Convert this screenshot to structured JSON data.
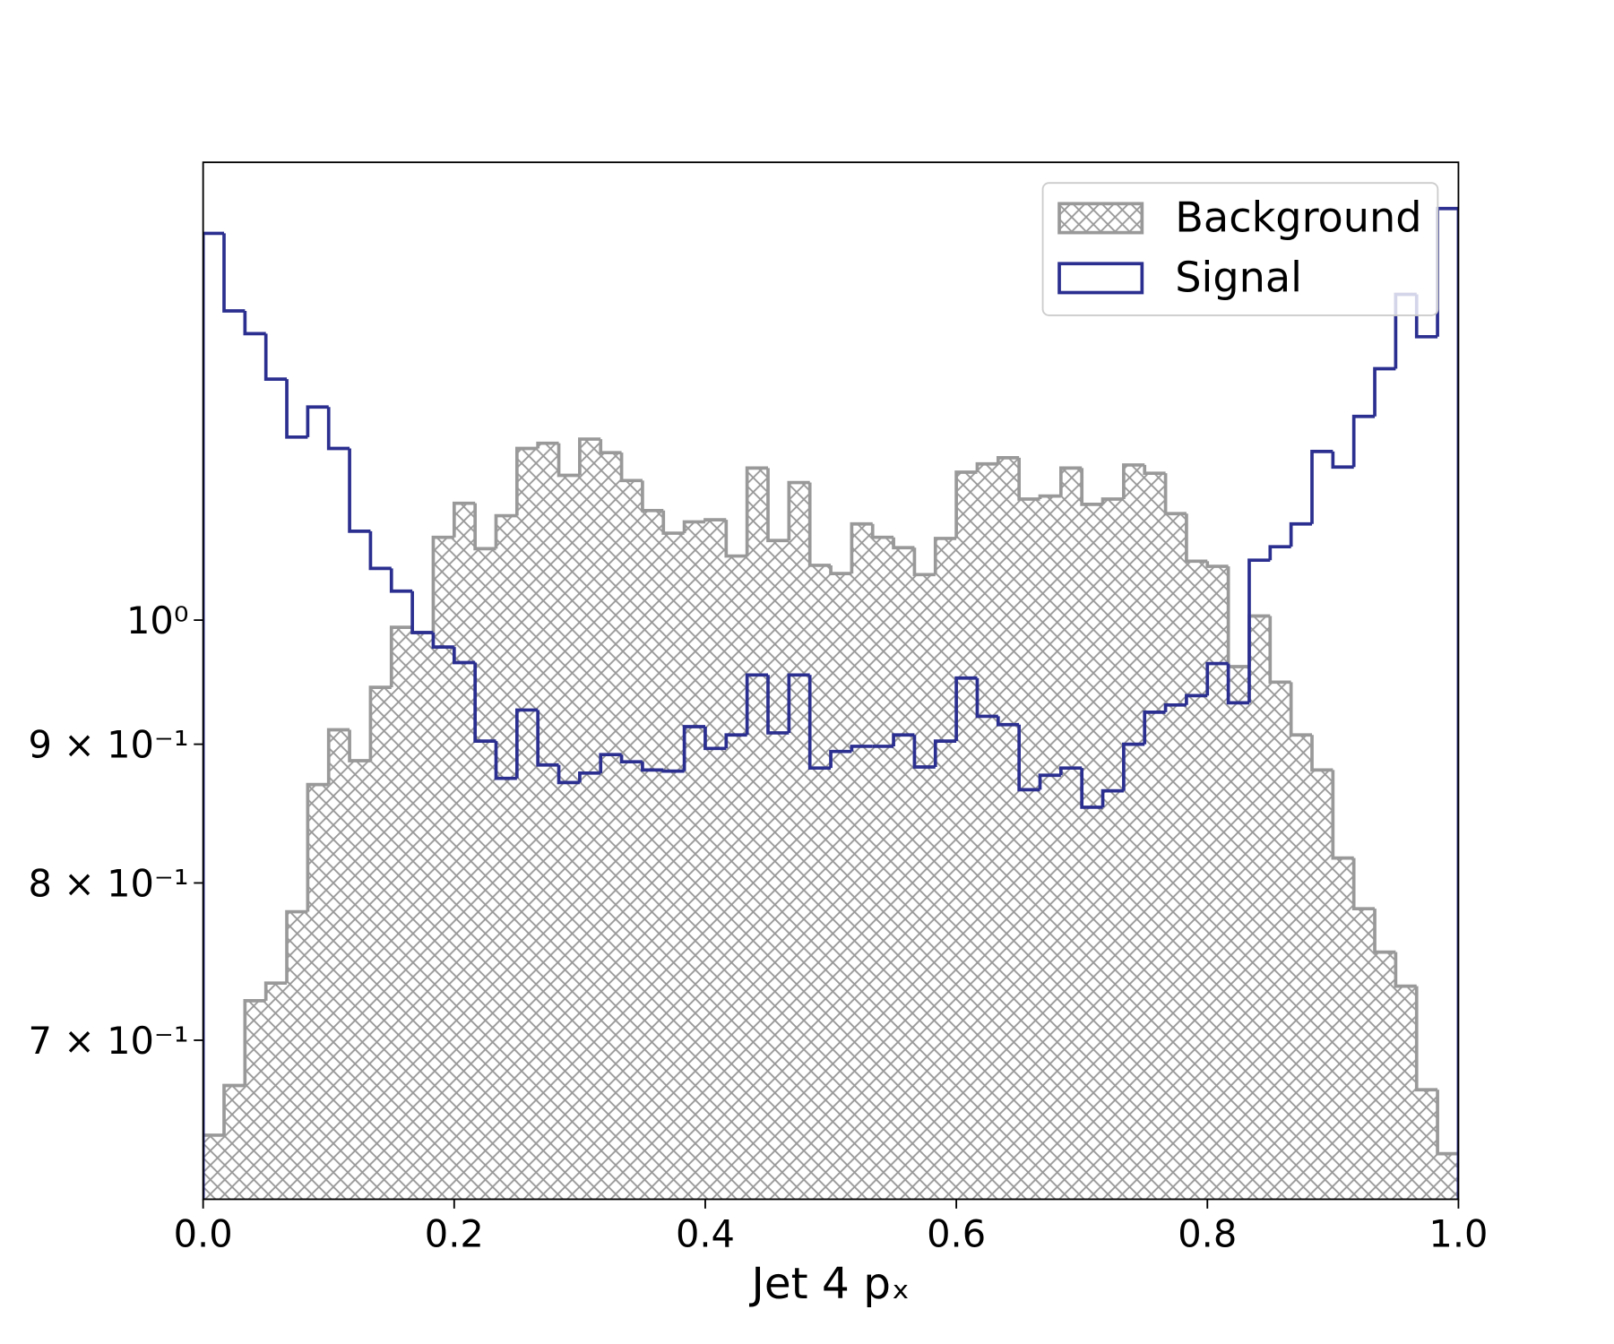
{
  "chart_data": {
    "type": "histogram",
    "xlabel": "Jet 4 pₓ",
    "bins": [
      0,
      0.016667,
      0.033333,
      0.05,
      0.066667,
      0.083333,
      0.1,
      0.116667,
      0.133333,
      0.15,
      0.166667,
      0.183333,
      0.2,
      0.216667,
      0.233333,
      0.25,
      0.266667,
      0.283333,
      0.3,
      0.316667,
      0.333333,
      0.35,
      0.366667,
      0.383333,
      0.4,
      0.416667,
      0.433333,
      0.45,
      0.466667,
      0.483333,
      0.5,
      0.516667,
      0.533333,
      0.55,
      0.566667,
      0.583333,
      0.6,
      0.616667,
      0.633333,
      0.65,
      0.666667,
      0.683333,
      0.7,
      0.716667,
      0.733333,
      0.75,
      0.766667,
      0.783333,
      0.8,
      0.816667,
      0.833333,
      0.85,
      0.866667,
      0.883333,
      0.9,
      0.916667,
      0.933333,
      0.95,
      0.966667,
      0.983333,
      1
    ],
    "series": [
      {
        "name": "Background",
        "color": "#999999",
        "hatch": true,
        "values": [
          0.6458,
          0.6736,
          0.7239,
          0.7348,
          0.7807,
          0.8697,
          0.9111,
          0.8875,
          0.9445,
          0.9939,
          0.9895,
          1.0728,
          1.1043,
          1.0625,
          1.0927,
          1.1569,
          1.162,
          1.1308,
          1.1661,
          1.1528,
          1.1258,
          1.0975,
          1.0766,
          1.087,
          1.0889,
          1.0559,
          1.1378,
          1.0699,
          1.1239,
          1.0476,
          1.0403,
          1.0851,
          1.0728,
          1.0634,
          1.0394,
          1.0718,
          1.1338,
          1.1418,
          1.1478,
          1.1082,
          1.1111,
          1.1378,
          1.1033,
          1.1082,
          1.1408,
          1.1328,
          1.0946,
          1.0513,
          1.0467,
          0.9613,
          1.0035,
          0.9487,
          0.9071,
          0.8805,
          0.8171,
          0.7827,
          0.7544,
          0.7329,
          0.6712,
          0.6357
        ]
      },
      {
        "name": "Signal",
        "color": "#2b2f8f",
        "hatch": false,
        "values": [
          1.3887,
          1.3002,
          1.2753,
          1.227,
          1.1681,
          1.1983,
          1.1569,
          1.0784,
          1.0449,
          1.0249,
          0.9895,
          0.9774,
          0.9646,
          0.9024,
          0.8743,
          0.9265,
          0.8843,
          0.8712,
          0.8782,
          0.8921,
          0.8867,
          0.8805,
          0.8797,
          0.9135,
          0.8968,
          0.9071,
          0.9545,
          0.9087,
          0.9545,
          0.882,
          0.8945,
          0.8984,
          0.8984,
          0.9071,
          0.8828,
          0.9024,
          0.952,
          0.9216,
          0.9151,
          0.8659,
          0.8766,
          0.882,
          0.8531,
          0.8651,
          0.9,
          0.9248,
          0.9305,
          0.9379,
          0.9638,
          0.9322,
          1.0522,
          1.0643,
          1.0851,
          1.1539,
          1.1388,
          1.1888,
          1.2379,
          1.3186,
          1.272,
          1.4182
        ]
      }
    ],
    "xlim": [
      0,
      1
    ],
    "xticks": [
      {
        "value": 0,
        "label": "0.0"
      },
      0.2,
      0.4,
      0.6,
      0.8,
      {
        "value": 1,
        "label": "1.0"
      }
    ],
    "ylim": [
      0.6116,
      1.475
    ],
    "yscale": "log",
    "yticks": [
      {
        "value": 0.7,
        "label": "7 × 10⁻¹"
      },
      {
        "value": 0.8,
        "label": "8 × 10⁻¹"
      },
      {
        "value": 0.9,
        "label": "9 × 10⁻¹"
      },
      {
        "value": 1,
        "label": "10⁰"
      }
    ],
    "legend": "upper right"
  }
}
